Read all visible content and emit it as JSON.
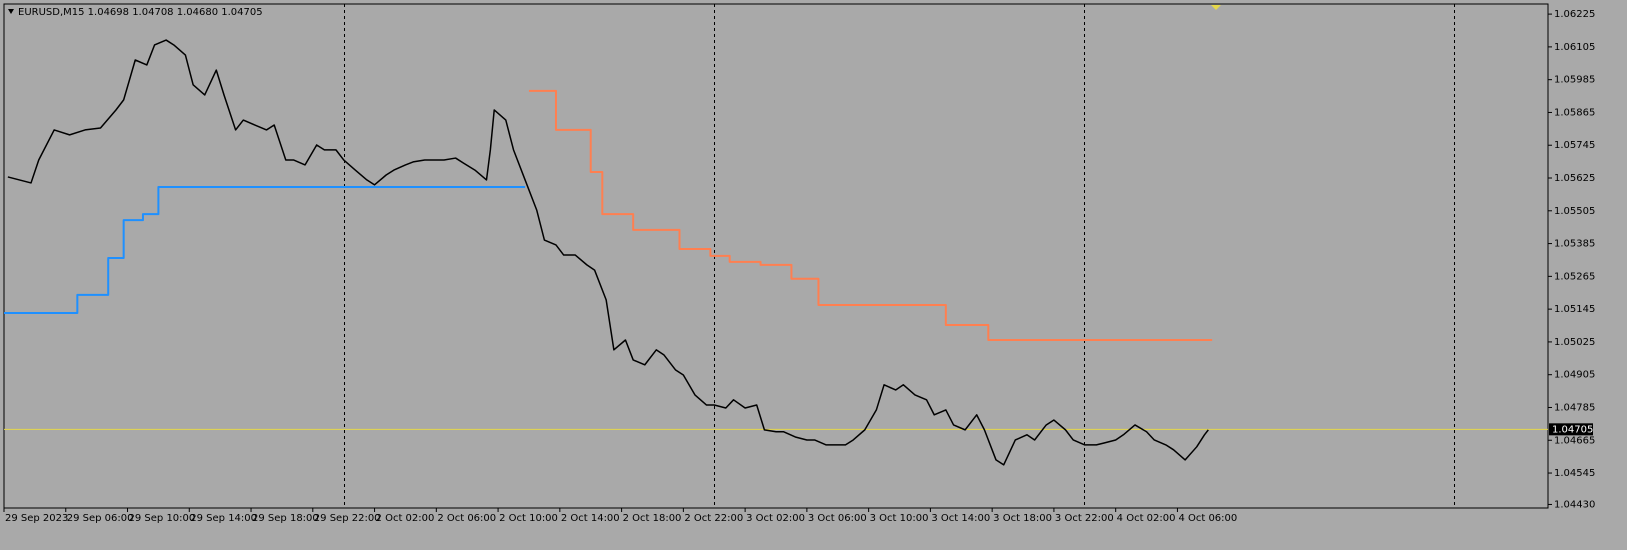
{
  "chart_data": {
    "type": "line",
    "title": "EURUSD,M15  1.04698 1.04708 1.04680 1.04705",
    "xlim": [
      0,
      400
    ],
    "ylim": [
      1.04417,
      1.06262
    ],
    "yticks": [
      1.06225,
      1.06105,
      1.05985,
      1.05865,
      1.05745,
      1.05625,
      1.05505,
      1.05385,
      1.05265,
      1.05145,
      1.05025,
      1.04905,
      1.04785,
      1.04665,
      1.04545,
      {
        "value": 1.0443,
        "label": "1.04430"
      }
    ],
    "xticks": [
      {
        "value": 0,
        "label": "29 Sep 2023"
      },
      {
        "value": 16,
        "label": "29 Sep 06:00"
      },
      {
        "value": 32,
        "label": "29 Sep 10:00"
      },
      {
        "value": 48,
        "label": "29 Sep 14:00"
      },
      {
        "value": 64,
        "label": "29 Sep 18:00"
      },
      {
        "value": 80,
        "label": "29 Sep 22:00"
      },
      {
        "value": 96,
        "label": "2 Oct 02:00"
      },
      {
        "value": 112,
        "label": "2 Oct 06:00"
      },
      {
        "value": 128,
        "label": "2 Oct 10:00"
      },
      {
        "value": 144,
        "label": "2 Oct 14:00"
      },
      {
        "value": 160,
        "label": "2 Oct 18:00"
      },
      {
        "value": 176,
        "label": "2 Oct 22:00"
      },
      {
        "value": 192,
        "label": "3 Oct 02:00"
      },
      {
        "value": 208,
        "label": "3 Oct 06:00"
      },
      {
        "value": 224,
        "label": "3 Oct 10:00"
      },
      {
        "value": 240,
        "label": "3 Oct 14:00"
      },
      {
        "value": 256,
        "label": "3 Oct 18:00"
      },
      {
        "value": 272,
        "label": "3 Oct 22:00"
      },
      {
        "value": 288,
        "label": "4 Oct 02:00"
      },
      {
        "value": 304,
        "label": "4 Oct 06:00"
      }
    ],
    "current_price": 1.04705,
    "current_price_color": "#e6d84a",
    "series": [
      {
        "color": "#000000",
        "step": false,
        "x": [
          1,
          7,
          9,
          13,
          17,
          21,
          25,
          29,
          31,
          34,
          37,
          39,
          42,
          44,
          47,
          49,
          52,
          55,
          57,
          60,
          62,
          65,
          68,
          70,
          73,
          75,
          78,
          81,
          83,
          86,
          88,
          91,
          94,
          96,
          99,
          101,
          104,
          106,
          109,
          112,
          114,
          117,
          119,
          122,
          125,
          126,
          127,
          130,
          132,
          135,
          138,
          140,
          143,
          145,
          148,
          151,
          153,
          156,
          158,
          161,
          163,
          166,
          169,
          171,
          174,
          176,
          179,
          182,
          184,
          187,
          189,
          192,
          195,
          197,
          200,
          202,
          205,
          208,
          210,
          213,
          215,
          218,
          220,
          223,
          226,
          228,
          231,
          233,
          236,
          239,
          241,
          244,
          246,
          249,
          252,
          254,
          257,
          259,
          262,
          265,
          267,
          270,
          272,
          275,
          277,
          280,
          283,
          285,
          288,
          290,
          293,
          296,
          298,
          301,
          303,
          306,
          309,
          311,
          312
        ],
        "values": [
          1.05629,
          1.05607,
          1.05691,
          1.05801,
          1.05783,
          1.05801,
          1.05808,
          1.05874,
          1.05911,
          1.06057,
          1.06039,
          1.06112,
          1.0613,
          1.06112,
          1.06075,
          1.05966,
          1.05929,
          1.0602,
          1.05929,
          1.05801,
          1.05837,
          1.05819,
          1.05801,
          1.05819,
          1.05691,
          1.05691,
          1.05673,
          1.05746,
          1.05728,
          1.05728,
          1.05691,
          1.05654,
          1.05618,
          1.056,
          1.05636,
          1.05654,
          1.05673,
          1.05684,
          1.05691,
          1.05691,
          1.05691,
          1.05698,
          1.0568,
          1.05654,
          1.05618,
          1.05728,
          1.05874,
          1.05837,
          1.05728,
          1.05618,
          1.05508,
          1.05398,
          1.0538,
          1.05343,
          1.05343,
          1.05307,
          1.05288,
          1.05179,
          1.04996,
          1.05032,
          1.04959,
          1.04941,
          1.04996,
          1.04977,
          1.04922,
          1.04904,
          1.04831,
          1.04794,
          1.04794,
          1.04783,
          1.04813,
          1.04783,
          1.04794,
          1.04703,
          1.04696,
          1.04696,
          1.04677,
          1.04666,
          1.04666,
          1.04648,
          1.04648,
          1.04648,
          1.04666,
          1.04703,
          1.04776,
          1.04868,
          1.04849,
          1.04868,
          1.04831,
          1.04813,
          1.04758,
          1.04776,
          1.04721,
          1.04703,
          1.04758,
          1.04703,
          1.04593,
          1.04575,
          1.04666,
          1.04685,
          1.04666,
          1.04721,
          1.04739,
          1.04703,
          1.04666,
          1.04648,
          1.04648,
          1.04655,
          1.04666,
          1.04685,
          1.04721,
          1.04696,
          1.04666,
          1.04648,
          1.0463,
          1.04593,
          1.04641,
          1.04685,
          1.04703
        ]
      },
      {
        "color": "#1e90ff",
        "step": true,
        "x": [
          0,
          19,
          27,
          31,
          36,
          40,
          135
        ],
        "values": [
          1.05131,
          1.05197,
          1.05332,
          1.05471,
          1.05493,
          1.05592,
          1.05592
        ]
      },
      {
        "color": "#ff7f50",
        "step": true,
        "x": [
          136,
          143,
          152,
          155,
          163,
          175,
          183,
          188,
          196,
          204,
          211,
          244,
          255,
          313
        ],
        "values": [
          1.05944,
          1.05801,
          1.05647,
          1.05493,
          1.05435,
          1.05365,
          1.0534,
          1.05318,
          1.05307,
          1.05256,
          1.0516,
          1.05087,
          1.05032,
          1.05032
        ]
      }
    ]
  }
}
